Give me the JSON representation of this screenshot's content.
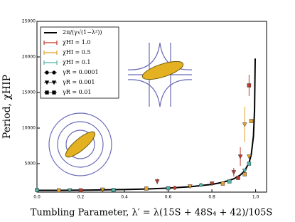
{
  "chart_data": {
    "type": "scatter",
    "x_label": "Tumbling Parameter, λ′ = λ(15S + 48S₄ + 42)/105S",
    "y_label": "Period, χHIP",
    "xlim": [
      0,
      1.05
    ],
    "ylim": [
      1000,
      25000
    ],
    "xticks": [
      {
        "value": 0,
        "label": "0.0"
      },
      {
        "value": 0.2,
        "label": "0.2"
      },
      {
        "value": 0.4,
        "label": "0.4"
      },
      {
        "value": 0.6,
        "label": "0.6"
      },
      {
        "value": 0.8,
        "label": "0.8"
      },
      {
        "value": 1,
        "label": "1.0"
      }
    ],
    "yticks": [
      5000,
      10000,
      15000,
      20000,
      25000
    ],
    "curve": {
      "name": "2π/(γ√(1−λ²))",
      "color": "#000000",
      "x": [
        0,
        0.1,
        0.2,
        0.3,
        0.4,
        0.5,
        0.6,
        0.7,
        0.8,
        0.85,
        0.9,
        0.93,
        0.95,
        0.97,
        0.98,
        0.99,
        0.995,
        0.998
      ],
      "values": [
        1250,
        1256,
        1276,
        1310,
        1364,
        1443,
        1563,
        1750,
        2083,
        2373,
        2868,
        3401,
        4003,
        5142,
        6281,
        8861,
        12516,
        19771
      ]
    },
    "series": [
      {
        "name": "χHI = 1.0",
        "color": "#c0392b",
        "x": [
          0.0,
          0.2,
          0.3,
          0.55,
          0.63,
          0.8,
          0.9,
          0.92,
          0.93,
          0.97
        ],
        "values": [
          1300,
          1250,
          1300,
          2500,
          1600,
          2200,
          3800,
          3000,
          6000,
          16000
        ],
        "errors": [
          null,
          null,
          null,
          400,
          null,
          null,
          600,
          null,
          1300,
          1500
        ],
        "markers": [
          "o",
          "s",
          "v",
          "v",
          "o",
          "v",
          "v",
          "s",
          "v",
          "s"
        ]
      },
      {
        "name": "χHI = 0.5",
        "color": "#e5a12a",
        "x": [
          0.1,
          0.3,
          0.5,
          0.7,
          0.85,
          0.95,
          0.95,
          0.97,
          0.98
        ],
        "values": [
          1250,
          1350,
          1500,
          1800,
          2200,
          3500,
          10500,
          6000,
          11000
        ],
        "errors": [
          null,
          null,
          null,
          null,
          null,
          null,
          2500,
          null,
          null
        ],
        "markers": [
          "s",
          "v",
          "s",
          "v",
          "s",
          "s",
          "v",
          "v",
          "s"
        ]
      },
      {
        "name": "χHI = 0.1",
        "color": "#4fb3a6",
        "x": [
          0.0,
          0.15,
          0.35,
          0.6,
          0.75,
          0.88,
          0.95,
          0.97
        ],
        "values": [
          1300,
          1250,
          1300,
          1550,
          2000,
          2500,
          4000,
          5000
        ],
        "errors": [
          null,
          null,
          null,
          null,
          null,
          null,
          null,
          null
        ],
        "markers": [
          "s",
          "v",
          "s",
          "s",
          "o",
          "s",
          "v",
          "s"
        ]
      }
    ],
    "marker_legend": [
      {
        "label": "γR = 0.0001",
        "marker": "o"
      },
      {
        "label": "γR = 0.001",
        "marker": "v"
      },
      {
        "label": "γR = 0.01",
        "marker": "s"
      }
    ]
  }
}
